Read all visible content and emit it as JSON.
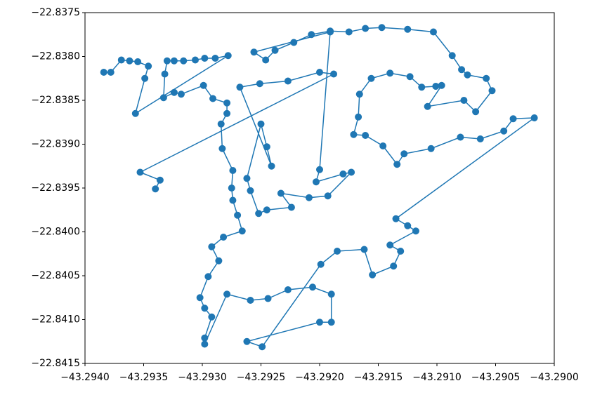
{
  "chart_data": {
    "type": "line",
    "x": [
      -43.29384,
      -43.29378,
      -43.29369,
      -43.29362,
      -43.29355,
      -43.29346,
      -43.29349,
      -43.29357,
      -43.29278,
      -43.29289,
      -43.29298,
      -43.29306,
      -43.29316,
      -43.29324,
      -43.2933,
      -43.29332,
      -43.29333,
      -43.29324,
      -43.29318,
      -43.29299,
      -43.29291,
      -43.29279,
      -43.29279,
      -43.29284,
      -43.29283,
      -43.29274,
      -43.29275,
      -43.29274,
      -43.2927,
      -43.29266,
      -43.29282,
      -43.29292,
      -43.29286,
      -43.29295,
      -43.29302,
      -43.29298,
      -43.29292,
      -43.29298,
      -43.29298,
      -43.29279,
      -43.29259,
      -43.29244,
      -43.29227,
      -43.29206,
      -43.2919,
      -43.2919,
      -43.292,
      -43.29262,
      -43.29249,
      -43.29199,
      -43.29185,
      -43.29162,
      -43.29155,
      -43.29137,
      -43.29131,
      -43.2914,
      -43.29118,
      -43.29125,
      -43.29135,
      -43.29017,
      -43.29035,
      -43.29043,
      -43.29063,
      -43.2908,
      -43.29105,
      -43.29128,
      -43.29134,
      -43.29146,
      -43.29161,
      -43.29171,
      -43.29167,
      -43.29166,
      -43.29156,
      -43.2914,
      -43.29123,
      -43.29113,
      -43.29101,
      -43.29096,
      -43.29108,
      -43.29077,
      -43.29067,
      -43.29053,
      -43.29058,
      -43.29074,
      -43.29079,
      -43.29087,
      -43.29103,
      -43.29125,
      -43.29147,
      -43.29161,
      -43.29175,
      -43.29191,
      -43.29207,
      -43.29222,
      -43.29238,
      -43.29246,
      -43.29256,
      -43.29191,
      -43.292,
      -43.29203,
      -43.2918,
      -43.29173,
      -43.29193,
      -43.29209,
      -43.29233,
      -43.29224,
      -43.29245,
      -43.29252,
      -43.29259,
      -43.29262,
      -43.2925,
      -43.29245,
      -43.29241,
      -43.29268,
      -43.29251,
      -43.29227,
      -43.292,
      -43.29188,
      -43.29353,
      -43.29336,
      -43.2934
    ],
    "series": [
      {
        "color": "#1f77b4",
        "values": [
          -22.83818,
          -22.83818,
          -22.83804,
          -22.83805,
          -22.83806,
          -22.83811,
          -22.83825,
          -22.83865,
          -22.83799,
          -22.83802,
          -22.83802,
          -22.83804,
          -22.83805,
          -22.83805,
          -22.83805,
          -22.8382,
          -22.83847,
          -22.83841,
          -22.83843,
          -22.83833,
          -22.83848,
          -22.83853,
          -22.83865,
          -22.83877,
          -22.83905,
          -22.8393,
          -22.8395,
          -22.83964,
          -22.83981,
          -22.83999,
          -22.84006,
          -22.84017,
          -22.84033,
          -22.84051,
          -22.84075,
          -22.84087,
          -22.84097,
          -22.84121,
          -22.84128,
          -22.84071,
          -22.84078,
          -22.84076,
          -22.84066,
          -22.84063,
          -22.84071,
          -22.84103,
          -22.84103,
          -22.84125,
          -22.84131,
          -22.84037,
          -22.84022,
          -22.8402,
          -22.84049,
          -22.84039,
          -22.84022,
          -22.84015,
          -22.83999,
          -22.83993,
          -22.83985,
          -22.8387,
          -22.83871,
          -22.83885,
          -22.83894,
          -22.83892,
          -22.83905,
          -22.83911,
          -22.83923,
          -22.83902,
          -22.8389,
          -22.83889,
          -22.83869,
          -22.83843,
          -22.83825,
          -22.83819,
          -22.83823,
          -22.83835,
          -22.83834,
          -22.83833,
          -22.83857,
          -22.8385,
          -22.83863,
          -22.83839,
          -22.83825,
          -22.83821,
          -22.83815,
          -22.83799,
          -22.83772,
          -22.83769,
          -22.83767,
          -22.83768,
          -22.83772,
          -22.83771,
          -22.83775,
          -22.83784,
          -22.83793,
          -22.83804,
          -22.83795,
          -22.83772,
          -22.83929,
          -22.83943,
          -22.83934,
          -22.83932,
          -22.83959,
          -22.83961,
          -22.83956,
          -22.83972,
          -22.83975,
          -22.83979,
          -22.83953,
          -22.83939,
          -22.83877,
          -22.83903,
          -22.83925,
          -22.83835,
          -22.83831,
          -22.83828,
          -22.83818,
          -22.8382,
          -22.83932,
          -22.83941,
          -22.83951
        ]
      }
    ],
    "xlim": [
      -43.294,
      -43.29
    ],
    "ylim": [
      -22.8415,
      -22.8375
    ],
    "xticks": [
      {
        "value": -43.294,
        "label": "−43.2940"
      },
      {
        "value": -43.2935,
        "label": "−43.2935"
      },
      {
        "value": -43.293,
        "label": "−43.2930"
      },
      {
        "value": -43.2925,
        "label": "−43.2925"
      },
      {
        "value": -43.292,
        "label": "−43.2920"
      },
      {
        "value": -43.2915,
        "label": "−43.2915"
      },
      {
        "value": -43.291,
        "label": "−43.2910"
      },
      {
        "value": -43.2905,
        "label": "−43.2905"
      },
      {
        "value": -43.29,
        "label": "−43.2900"
      }
    ],
    "yticks": [
      {
        "value": -22.8375,
        "label": "−22.8375"
      },
      {
        "value": -22.838,
        "label": "−22.8380"
      },
      {
        "value": -22.8385,
        "label": "−22.8385"
      },
      {
        "value": -22.839,
        "label": "−22.8390"
      },
      {
        "value": -22.8395,
        "label": "−22.8395"
      },
      {
        "value": -22.84,
        "label": "−22.8400"
      },
      {
        "value": -22.8405,
        "label": "−22.8405"
      },
      {
        "value": -22.841,
        "label": "−22.8410"
      },
      {
        "value": -22.8415,
        "label": "−22.8415"
      }
    ],
    "grid": false
  }
}
